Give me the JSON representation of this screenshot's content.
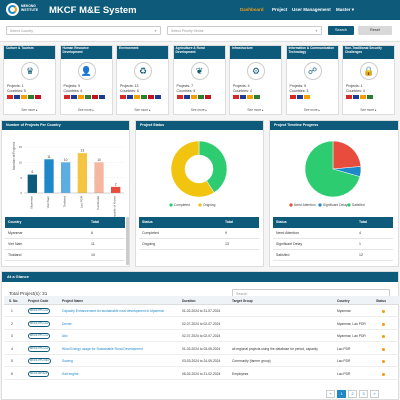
{
  "header": {
    "org_name": "MEKONG INSTITUTE",
    "app_title": "MKCF M&E System",
    "nav": {
      "dashboard": "Dashboard",
      "project": "Project",
      "user_management": "User Management",
      "master": "Master"
    },
    "colors": {
      "header_bg": "#0d5a7a",
      "active_nav": "#f39c12",
      "accent": "#1e88c8"
    }
  },
  "filters": {
    "country_placeholder": "Select Country",
    "sector_placeholder": "Select Priority Sector",
    "search_label": "Search",
    "reset_label": "Reset"
  },
  "sectors": [
    {
      "name": "Culture & Tourism",
      "icon": "culture-icon",
      "glyph": "♛",
      "projects": "Projects: 1",
      "countries": "Countries: 5",
      "see_more": "See more ▸"
    },
    {
      "name": "Human Resource Development",
      "icon": "hrd-icon",
      "glyph": "👤",
      "projects": "Projects: 9",
      "countries": "Countries: 6",
      "see_more": "See more ▸"
    },
    {
      "name": "Environment",
      "icon": "environment-icon",
      "glyph": "♻",
      "projects": "Projects: 13",
      "countries": "Countries: 6",
      "see_more": "See more ▸"
    },
    {
      "name": "Agriculture & Rural Development",
      "icon": "agriculture-icon",
      "glyph": "❦",
      "projects": "Projects: 7",
      "countries": "Countries: 5",
      "see_more": "See more ▸"
    },
    {
      "name": "Infrastructure",
      "icon": "infrastructure-icon",
      "glyph": "⚙",
      "projects": "Projects: 4",
      "countries": "Countries: 4",
      "see_more": "See more ▸"
    },
    {
      "name": "Information & Communication Technology",
      "icon": "ict-icon",
      "glyph": "☍",
      "projects": "Projects: 5",
      "countries": "Countries: 3",
      "see_more": "See more ▸"
    },
    {
      "name": "Non-Traditional Security Challenges",
      "icon": "security-icon",
      "glyph": "🔒",
      "projects": "Projects: 1",
      "countries": "Countries: 4",
      "see_more": "See more ▸"
    }
  ],
  "panels": {
    "country_title": "Number of Projects Per Country",
    "status_title": "Project Status",
    "timeline_title": "Project Timeline Progress"
  },
  "chart_data": [
    {
      "type": "bar",
      "title": "Number of Projects Per Country",
      "ylabel": "Number of Projects",
      "categories": [
        "Myanmar",
        "Viet Nam",
        "Thailand",
        "Lao PDR",
        "Cambodia",
        "Republic of Korea"
      ],
      "values": [
        6,
        11,
        10,
        13,
        10,
        2
      ],
      "ylim": [
        0,
        15
      ],
      "colors": [
        "#0d5a7a",
        "#1e88c8",
        "#5dade2",
        "#f5c542",
        "#f5b7a0",
        "#e74c3c"
      ]
    },
    {
      "type": "pie",
      "title": "Project Status",
      "labels": [
        "Completed",
        "Ongoing"
      ],
      "values": [
        9,
        13
      ],
      "colors": [
        "#2ecc71",
        "#f1c40f"
      ]
    },
    {
      "type": "pie",
      "title": "Project Timeline Progress",
      "labels": [
        "Need Attention",
        "Significant Delay",
        "Satisfied"
      ],
      "values": [
        4,
        1,
        12
      ],
      "colors": [
        "#e74c3c",
        "#1e88c8",
        "#2ecc71"
      ]
    }
  ],
  "country_table": {
    "headers": [
      "Country",
      "Total"
    ],
    "rows": [
      [
        "Myanmar",
        "6"
      ],
      [
        "Viet Nam",
        "11"
      ],
      [
        "Thailand",
        "10"
      ]
    ]
  },
  "status_table": {
    "headers": [
      "Status",
      "Total"
    ],
    "rows": [
      [
        "Completed",
        "9"
      ],
      [
        "Ongoing",
        "13"
      ]
    ]
  },
  "timeline_table": {
    "headers": [
      "Status",
      "Total"
    ],
    "rows": [
      [
        "Need Attention",
        "4"
      ],
      [
        "Significant Delay",
        "1"
      ],
      [
        "Satisfied",
        "12"
      ]
    ]
  },
  "projects": {
    "section_title": "At a Glance",
    "total_label": "Total Project(s): 31",
    "search_placeholder": "Search",
    "headers": [
      "S. No.",
      "Project Code",
      "Project Name",
      "Duration",
      "Target Group",
      "Country",
      "Status"
    ],
    "rows": [
      {
        "no": "1",
        "code": "MKCF-PTU-xxx",
        "name": "Capacity Enhancement for sustainable rural development in Myanmar",
        "duration": "01-02-2024 to 31-07-2024",
        "target": "",
        "country": "Myanmar"
      },
      {
        "no": "2",
        "code": "MKCF-PTU-xxx",
        "name": "Dnmkr",
        "duration": "02-07-2024 to 02-07-2024",
        "target": "",
        "country": "Myanmar, Lao PDR"
      },
      {
        "no": "3",
        "code": "MKCF-PTU-xxx",
        "name": "Abc",
        "duration": "02-07-2024 to 02-07-2024",
        "target": "",
        "country": "Myanmar, Lao PDR"
      },
      {
        "no": "4",
        "code": "MKCF-PTU-xxx",
        "name": "Wind Energy usage for Sustainable Rural Development",
        "duration": "01-03-2024 to 03-05-2024",
        "target": "all regional projects using the database for period, capacity",
        "country": "Lao PDR"
      },
      {
        "no": "5",
        "code": "MKCF-PTU-024",
        "name": "Sowing",
        "duration": "03-03-2024 to 24-05-2024",
        "target": "Community (farmer group)",
        "country": "Lao PDR"
      },
      {
        "no": "6",
        "code": "MKCF-RP-024",
        "name": "Salt engine",
        "duration": "05-02-2024 to 21-02-2024",
        "target": "Employees",
        "country": "Lao PDR"
      }
    ]
  },
  "pagination": {
    "prev": "«",
    "p1": "1",
    "p2": "2",
    "p3": "3",
    "next": "»"
  }
}
